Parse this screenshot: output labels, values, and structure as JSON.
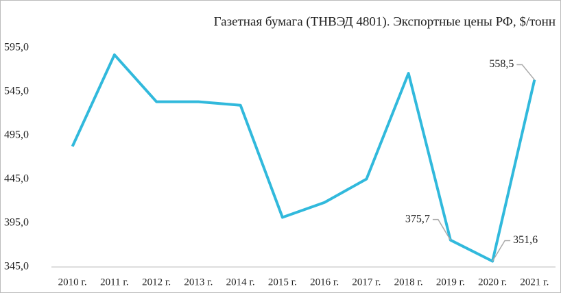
{
  "chart_data": {
    "type": "line",
    "title": "Газетная бумага (ТНВЭД 4801). Экспортные цены РФ, $/тонн",
    "categories": [
      "2010 г.",
      "2011 г.",
      "2012 г.",
      "2013 г.",
      "2014 г.",
      "2015 г.",
      "2016 г.",
      "2017 г.",
      "2018 г.",
      "2019 г.",
      "2020 г.",
      "2021 г."
    ],
    "values": [
      482.5,
      587,
      533.5,
      533.5,
      529.5,
      401.6,
      418.6,
      445.3,
      565.9,
      375.7,
      351.6,
      558.5
    ],
    "value_labels": [
      null,
      null,
      null,
      null,
      null,
      null,
      null,
      null,
      null,
      "375,7",
      "351,6",
      "558,5"
    ],
    "color": "#31b9dc",
    "ylim": [
      345,
      605
    ],
    "yticks": [
      {
        "value": 345,
        "label": "345,0"
      },
      {
        "value": 395,
        "label": "395,0"
      },
      {
        "value": 445,
        "label": "445,0"
      },
      {
        "value": 495,
        "label": "495,0"
      },
      {
        "value": 545,
        "label": "545,0"
      },
      {
        "value": 595,
        "label": "595,0"
      }
    ],
    "grid": false
  }
}
